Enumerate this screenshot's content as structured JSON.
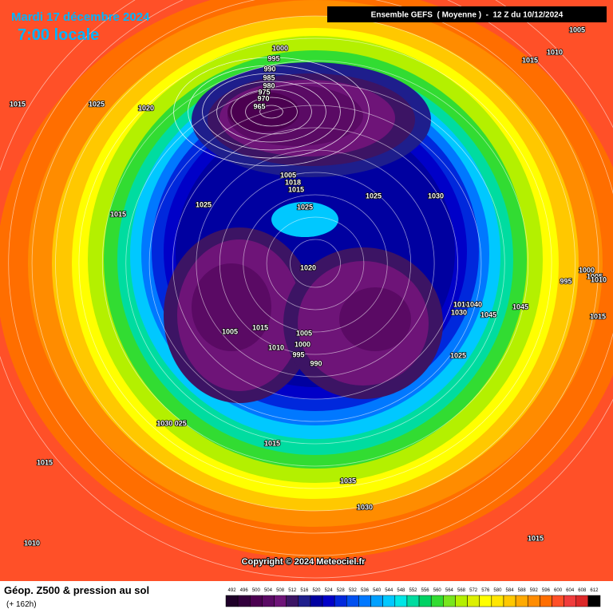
{
  "header": {
    "date": "Mardi 17 décembre 2024",
    "time": "7:00 locale",
    "run": "Ensemble GEFS  ( Moyenne )  -  12 Z du 10/12/2024"
  },
  "map": {
    "pressure_labels": [
      "1005",
      "1015",
      "1010",
      "1000",
      "995",
      "990",
      "985",
      "980",
      "975",
      "970",
      "965",
      "1015",
      "1025",
      "1020",
      "1005",
      "1018",
      "1015",
      "1025",
      "1030",
      "1025",
      "1025",
      "1015",
      "1020",
      "995",
      "1000",
      "1005",
      "1010",
      "1010",
      "1040",
      "1030",
      "1045",
      "1045",
      "1015",
      "1005",
      "1015",
      "1005",
      "1000",
      "1010",
      "995",
      "990",
      "1025",
      "1030 025",
      "1015",
      "1015",
      "1035",
      "1030",
      "1010",
      "1015"
    ],
    "copyright": "Copyright © 2024 Meteociel.fr"
  },
  "footer": {
    "title": "Géop. Z500 & pression au sol",
    "subtitle": "(+ 162h)"
  },
  "legend": {
    "ticks": [
      492,
      496,
      500,
      504,
      508,
      512,
      516,
      520,
      524,
      528,
      532,
      536,
      540,
      544,
      548,
      552,
      556,
      560,
      564,
      568,
      572,
      576,
      580,
      584,
      588,
      592,
      596,
      600,
      604,
      608,
      612
    ],
    "colors": [
      "#1e0028",
      "#32003c",
      "#4b0050",
      "#5a0a64",
      "#6e1478",
      "#3c1464",
      "#1e1e8c",
      "#0000a0",
      "#0000c8",
      "#0028dc",
      "#0050f0",
      "#0078ff",
      "#00a0ff",
      "#00c8ff",
      "#00e6e6",
      "#00dca0",
      "#00d264",
      "#32dc32",
      "#78e61e",
      "#b4f000",
      "#dcf000",
      "#ffff00",
      "#ffe600",
      "#ffc800",
      "#ffaa00",
      "#ff8c00",
      "#ff6e00",
      "#ff5028",
      "#f03c3c",
      "#dc2828",
      "#000000"
    ]
  }
}
